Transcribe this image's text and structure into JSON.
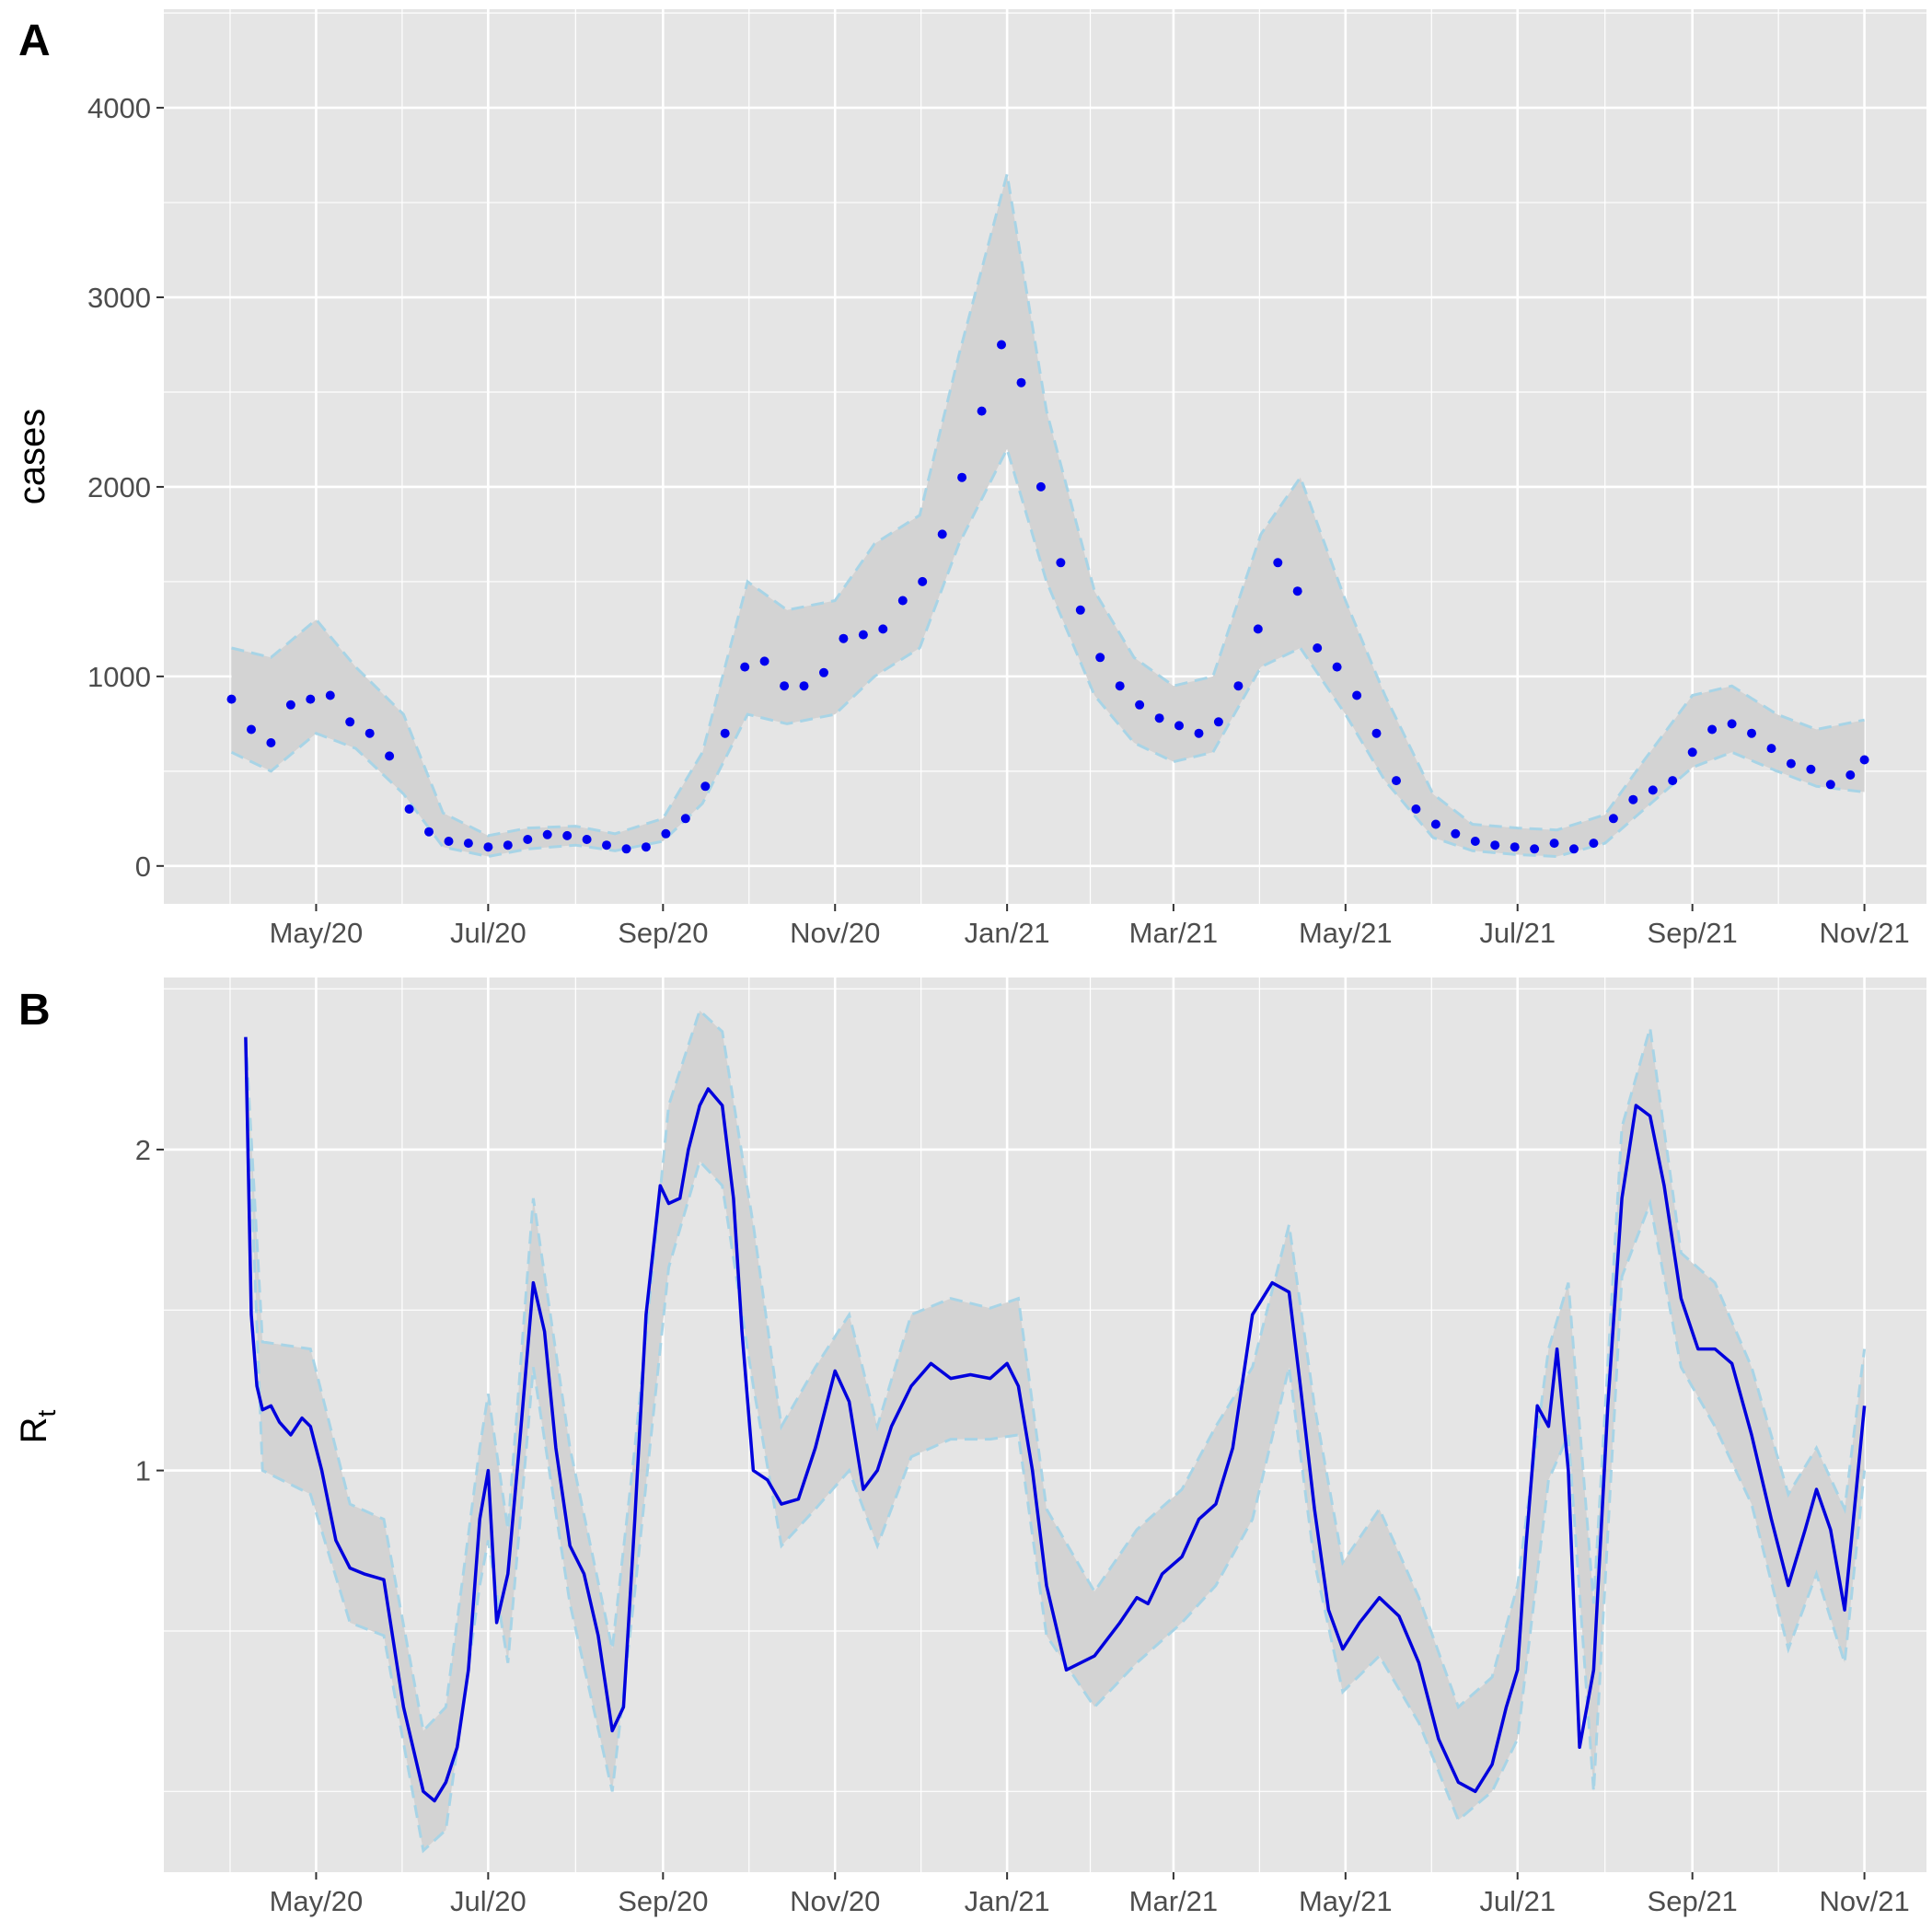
{
  "figure": {
    "panel_a_tag": "A",
    "panel_b_tag": "B"
  },
  "colors": {
    "panel_bg": "#e5e5e5",
    "grid": "#ffffff",
    "ribbon_fill": "#d3d3d3",
    "ribbon_edge": "#a8d4e6",
    "points": "#0000ee",
    "line": "#0000dd",
    "tick_text": "#4d4d4d"
  },
  "chart_data": [
    {
      "panel": "A",
      "type": "scatter",
      "ylabel": "cases",
      "ylim": [
        -200,
        4520
      ],
      "yticks": [
        0,
        1000,
        2000,
        3000,
        4000
      ],
      "ytick_labels": [
        "0",
        "1000",
        "2000",
        "3000",
        "4000"
      ],
      "xlim": [
        "2020-03-08",
        "2021-11-23"
      ],
      "xticks": [
        "2020-05-01",
        "2020-07-01",
        "2020-09-01",
        "2020-11-01",
        "2021-01-01",
        "2021-03-01",
        "2021-05-01",
        "2021-07-01",
        "2021-09-01",
        "2021-11-01"
      ],
      "xtick_labels": [
        "May/20",
        "Jul/20",
        "Sep/20",
        "Nov/20",
        "Jan/21",
        "Mar/21",
        "May/21",
        "Jul/21",
        "Sep/21",
        "Nov/21"
      ],
      "grid": true,
      "legend": "none",
      "band_note": "dashed light-blue interval band around observed daily cases",
      "series": [
        {
          "kind": "points",
          "x": [
            "2020-04-01",
            "2020-04-08",
            "2020-04-15",
            "2020-04-22",
            "2020-04-29",
            "2020-05-06",
            "2020-05-13",
            "2020-05-20",
            "2020-05-27",
            "2020-06-03",
            "2020-06-10",
            "2020-06-17",
            "2020-06-24",
            "2020-07-01",
            "2020-07-08",
            "2020-07-15",
            "2020-07-22",
            "2020-07-29",
            "2020-08-05",
            "2020-08-12",
            "2020-08-19",
            "2020-08-26",
            "2020-09-02",
            "2020-09-09",
            "2020-09-16",
            "2020-09-23",
            "2020-09-30",
            "2020-10-07",
            "2020-10-14",
            "2020-10-21",
            "2020-10-28",
            "2020-11-04",
            "2020-11-11",
            "2020-11-18",
            "2020-11-25",
            "2020-12-02",
            "2020-12-09",
            "2020-12-16",
            "2020-12-23",
            "2020-12-30",
            "2021-01-06",
            "2021-01-13",
            "2021-01-20",
            "2021-01-27",
            "2021-02-03",
            "2021-02-10",
            "2021-02-17",
            "2021-02-24",
            "2021-03-03",
            "2021-03-10",
            "2021-03-17",
            "2021-03-24",
            "2021-03-31",
            "2021-04-07",
            "2021-04-14",
            "2021-04-21",
            "2021-04-28",
            "2021-05-05",
            "2021-05-12",
            "2021-05-19",
            "2021-05-26",
            "2021-06-02",
            "2021-06-09",
            "2021-06-16",
            "2021-06-23",
            "2021-06-30",
            "2021-07-07",
            "2021-07-14",
            "2021-07-21",
            "2021-07-28",
            "2021-08-04",
            "2021-08-11",
            "2021-08-18",
            "2021-08-25",
            "2021-09-01",
            "2021-09-08",
            "2021-09-15",
            "2021-09-22",
            "2021-09-29",
            "2021-10-06",
            "2021-10-13",
            "2021-10-20",
            "2021-10-27",
            "2021-11-01"
          ],
          "y": [
            880,
            720,
            650,
            850,
            880,
            900,
            760,
            700,
            580,
            300,
            180,
            130,
            120,
            100,
            110,
            140,
            165,
            160,
            140,
            110,
            90,
            100,
            170,
            250,
            420,
            700,
            1050,
            1080,
            950,
            950,
            1020,
            1200,
            1220,
            1250,
            1400,
            1500,
            1750,
            2050,
            2400,
            2750,
            2550,
            2000,
            1600,
            1350,
            1100,
            950,
            850,
            780,
            740,
            700,
            760,
            950,
            1250,
            1600,
            1450,
            1150,
            1050,
            900,
            700,
            450,
            300,
            220,
            170,
            130,
            110,
            100,
            90,
            120,
            90,
            120,
            250,
            350,
            400,
            450,
            600,
            720,
            750,
            700,
            620,
            540,
            510,
            430,
            480,
            560
          ]
        },
        {
          "kind": "band_upper",
          "x": [
            "2020-04-01",
            "2020-04-15",
            "2020-05-01",
            "2020-05-15",
            "2020-06-01",
            "2020-06-15",
            "2020-07-01",
            "2020-07-15",
            "2020-08-01",
            "2020-08-15",
            "2020-09-01",
            "2020-09-15",
            "2020-10-01",
            "2020-10-15",
            "2020-11-01",
            "2020-11-15",
            "2020-12-01",
            "2020-12-15",
            "2021-01-01",
            "2021-01-15",
            "2021-02-01",
            "2021-02-15",
            "2021-03-01",
            "2021-03-15",
            "2021-04-01",
            "2021-04-15",
            "2021-05-01",
            "2021-05-15",
            "2021-06-01",
            "2021-06-15",
            "2021-07-01",
            "2021-07-15",
            "2021-08-01",
            "2021-08-15",
            "2021-09-01",
            "2021-09-15",
            "2021-10-01",
            "2021-10-15",
            "2021-11-01"
          ],
          "y": [
            1150,
            1100,
            1300,
            1050,
            800,
            280,
            160,
            200,
            210,
            170,
            250,
            600,
            1500,
            1350,
            1400,
            1700,
            1850,
            2700,
            3650,
            2400,
            1450,
            1100,
            950,
            1000,
            1750,
            2050,
            1400,
            900,
            380,
            220,
            200,
            190,
            270,
            560,
            900,
            950,
            800,
            720,
            770
          ]
        },
        {
          "kind": "band_lower",
          "x": [
            "2020-04-01",
            "2020-04-15",
            "2020-05-01",
            "2020-05-15",
            "2020-06-01",
            "2020-06-15",
            "2020-07-01",
            "2020-07-15",
            "2020-08-01",
            "2020-08-15",
            "2020-09-01",
            "2020-09-15",
            "2020-10-01",
            "2020-10-15",
            "2020-11-01",
            "2020-11-15",
            "2020-12-01",
            "2020-12-15",
            "2021-01-01",
            "2021-01-15",
            "2021-02-01",
            "2021-02-15",
            "2021-03-01",
            "2021-03-15",
            "2021-04-01",
            "2021-04-15",
            "2021-05-01",
            "2021-05-15",
            "2021-06-01",
            "2021-06-15",
            "2021-07-01",
            "2021-07-15",
            "2021-08-01",
            "2021-08-15",
            "2021-09-01",
            "2021-09-15",
            "2021-10-01",
            "2021-10-15",
            "2021-11-01"
          ],
          "y": [
            600,
            500,
            700,
            620,
            380,
            100,
            50,
            90,
            110,
            80,
            130,
            330,
            800,
            750,
            800,
            1000,
            1150,
            1700,
            2200,
            1500,
            900,
            650,
            550,
            600,
            1050,
            1150,
            800,
            450,
            150,
            80,
            60,
            50,
            120,
            300,
            520,
            600,
            500,
            420,
            390
          ]
        }
      ]
    },
    {
      "panel": "B",
      "type": "line",
      "ylabel": "R",
      "ylabel_subscript": "t",
      "scale": "log",
      "ylim": [
        0.42,
        2.9
      ],
      "yticks": [
        1,
        2
      ],
      "ytick_labels": [
        "1",
        "2"
      ],
      "xlim": [
        "2020-03-08",
        "2021-11-23"
      ],
      "xticks": [
        "2020-05-01",
        "2020-07-01",
        "2020-09-01",
        "2020-11-01",
        "2021-01-01",
        "2021-03-01",
        "2021-05-01",
        "2021-07-01",
        "2021-09-01",
        "2021-11-01"
      ],
      "xtick_labels": [
        "May/20",
        "Jul/20",
        "Sep/20",
        "Nov/20",
        "Jan/21",
        "Mar/21",
        "May/21",
        "Jul/21",
        "Sep/21",
        "Nov/21"
      ],
      "grid": true,
      "legend": "none",
      "series": [
        {
          "kind": "line",
          "x": [
            "2020-04-06",
            "2020-04-08",
            "2020-04-10",
            "2020-04-12",
            "2020-04-15",
            "2020-04-18",
            "2020-04-22",
            "2020-04-26",
            "2020-04-29",
            "2020-05-03",
            "2020-05-08",
            "2020-05-13",
            "2020-05-18",
            "2020-05-25",
            "2020-06-01",
            "2020-06-08",
            "2020-06-12",
            "2020-06-16",
            "2020-06-20",
            "2020-06-24",
            "2020-06-28",
            "2020-07-01",
            "2020-07-04",
            "2020-07-08",
            "2020-07-12",
            "2020-07-17",
            "2020-07-21",
            "2020-07-25",
            "2020-07-30",
            "2020-08-04",
            "2020-08-09",
            "2020-08-14",
            "2020-08-18",
            "2020-08-22",
            "2020-08-26",
            "2020-08-31",
            "2020-09-03",
            "2020-09-07",
            "2020-09-10",
            "2020-09-14",
            "2020-09-17",
            "2020-09-22",
            "2020-09-26",
            "2020-09-29",
            "2020-10-03",
            "2020-10-08",
            "2020-10-13",
            "2020-10-19",
            "2020-10-25",
            "2020-11-01",
            "2020-11-06",
            "2020-11-11",
            "2020-11-16",
            "2020-11-21",
            "2020-11-28",
            "2020-12-05",
            "2020-12-12",
            "2020-12-19",
            "2020-12-26",
            "2021-01-01",
            "2021-01-05",
            "2021-01-10",
            "2021-01-15",
            "2021-01-22",
            "2021-02-01",
            "2021-02-10",
            "2021-02-16",
            "2021-02-20",
            "2021-02-25",
            "2021-03-04",
            "2021-03-10",
            "2021-03-16",
            "2021-03-22",
            "2021-03-29",
            "2021-04-05",
            "2021-04-11",
            "2021-04-15",
            "2021-04-20",
            "2021-04-25",
            "2021-04-30",
            "2021-05-06",
            "2021-05-13",
            "2021-05-20",
            "2021-05-27",
            "2021-06-03",
            "2021-06-10",
            "2021-06-16",
            "2021-06-22",
            "2021-06-27",
            "2021-07-01",
            "2021-07-04",
            "2021-07-08",
            "2021-07-12",
            "2021-07-15",
            "2021-07-19",
            "2021-07-23",
            "2021-07-28",
            "2021-08-02",
            "2021-08-07",
            "2021-08-12",
            "2021-08-17",
            "2021-08-22",
            "2021-08-28",
            "2021-09-03",
            "2021-09-09",
            "2021-09-15",
            "2021-09-22",
            "2021-09-29",
            "2021-10-05",
            "2021-10-11",
            "2021-10-15",
            "2021-10-20",
            "2021-10-25",
            "2021-11-01"
          ],
          "y": [
            2.55,
            1.4,
            1.2,
            1.14,
            1.15,
            1.11,
            1.08,
            1.12,
            1.1,
            1.0,
            0.86,
            0.81,
            0.8,
            0.79,
            0.6,
            0.5,
            0.49,
            0.51,
            0.55,
            0.65,
            0.9,
            1.0,
            0.72,
            0.8,
            1.05,
            1.5,
            1.35,
            1.05,
            0.85,
            0.8,
            0.7,
            0.57,
            0.6,
            0.9,
            1.4,
            1.85,
            1.78,
            1.8,
            2.0,
            2.2,
            2.28,
            2.2,
            1.8,
            1.35,
            1.0,
            0.98,
            0.93,
            0.94,
            1.05,
            1.24,
            1.16,
            0.96,
            1.0,
            1.1,
            1.2,
            1.26,
            1.22,
            1.23,
            1.22,
            1.26,
            1.2,
            1.0,
            0.78,
            0.65,
            0.67,
            0.72,
            0.76,
            0.75,
            0.8,
            0.83,
            0.9,
            0.93,
            1.05,
            1.4,
            1.5,
            1.47,
            1.2,
            0.92,
            0.74,
            0.68,
            0.72,
            0.76,
            0.73,
            0.66,
            0.56,
            0.51,
            0.5,
            0.53,
            0.6,
            0.65,
            0.85,
            1.15,
            1.1,
            1.3,
            1.0,
            0.55,
            0.65,
            1.15,
            1.8,
            2.2,
            2.15,
            1.85,
            1.45,
            1.3,
            1.3,
            1.26,
            1.08,
            0.9,
            0.78,
            0.88,
            0.96,
            0.88,
            0.74,
            1.15
          ]
        }
      ],
      "band_upper": {
        "x": [
          "2020-04-06",
          "2020-04-12",
          "2020-04-29",
          "2020-05-13",
          "2020-05-25",
          "2020-06-08",
          "2020-06-16",
          "2020-06-28",
          "2020-07-01",
          "2020-07-08",
          "2020-07-17",
          "2020-07-30",
          "2020-08-14",
          "2020-08-22",
          "2020-09-03",
          "2020-09-14",
          "2020-09-22",
          "2020-10-03",
          "2020-10-13",
          "2020-10-25",
          "2020-11-06",
          "2020-11-16",
          "2020-11-28",
          "2020-12-12",
          "2020-12-26",
          "2021-01-05",
          "2021-01-15",
          "2021-02-01",
          "2021-02-16",
          "2021-03-04",
          "2021-03-16",
          "2021-03-29",
          "2021-04-11",
          "2021-04-20",
          "2021-04-30",
          "2021-05-13",
          "2021-05-27",
          "2021-06-10",
          "2021-06-22",
          "2021-07-01",
          "2021-07-12",
          "2021-07-19",
          "2021-07-28",
          "2021-08-07",
          "2021-08-17",
          "2021-08-28",
          "2021-09-09",
          "2021-09-22",
          "2021-10-05",
          "2021-10-15",
          "2021-10-25",
          "2021-11-01"
        ],
        "y": [
          2.55,
          1.32,
          1.3,
          0.93,
          0.9,
          0.57,
          0.6,
          1.05,
          1.18,
          0.88,
          1.8,
          1.05,
          0.68,
          1.05,
          2.2,
          2.7,
          2.58,
          1.7,
          1.1,
          1.25,
          1.4,
          1.1,
          1.4,
          1.45,
          1.42,
          1.45,
          0.92,
          0.77,
          0.88,
          0.96,
          1.1,
          1.25,
          1.7,
          1.15,
          0.82,
          0.92,
          0.76,
          0.6,
          0.64,
          0.78,
          1.3,
          1.5,
          0.75,
          2.1,
          2.6,
          1.6,
          1.5,
          1.25,
          0.95,
          1.05,
          0.92,
          1.3
        ]
      },
      "band_lower": {
        "x": [
          "2020-04-06",
          "2020-04-12",
          "2020-04-29",
          "2020-05-13",
          "2020-05-25",
          "2020-06-08",
          "2020-06-16",
          "2020-06-28",
          "2020-07-01",
          "2020-07-08",
          "2020-07-17",
          "2020-07-30",
          "2020-08-14",
          "2020-08-22",
          "2020-09-03",
          "2020-09-14",
          "2020-09-22",
          "2020-10-03",
          "2020-10-13",
          "2020-10-25",
          "2020-11-06",
          "2020-11-16",
          "2020-11-28",
          "2020-12-12",
          "2020-12-26",
          "2021-01-05",
          "2021-01-15",
          "2021-02-01",
          "2021-02-16",
          "2021-03-04",
          "2021-03-16",
          "2021-03-29",
          "2021-04-11",
          "2021-04-20",
          "2021-04-30",
          "2021-05-13",
          "2021-05-27",
          "2021-06-10",
          "2021-06-22",
          "2021-07-01",
          "2021-07-12",
          "2021-07-19",
          "2021-07-28",
          "2021-08-07",
          "2021-08-17",
          "2021-08-28",
          "2021-09-09",
          "2021-09-22",
          "2021-10-05",
          "2021-10-15",
          "2021-10-25",
          "2021-11-01"
        ],
        "y": [
          2.55,
          1.0,
          0.95,
          0.72,
          0.7,
          0.44,
          0.46,
          0.78,
          0.86,
          0.66,
          1.25,
          0.75,
          0.5,
          0.77,
          1.55,
          1.95,
          1.85,
          1.2,
          0.85,
          0.92,
          1.0,
          0.85,
          1.03,
          1.07,
          1.07,
          1.08,
          0.7,
          0.6,
          0.66,
          0.72,
          0.78,
          0.9,
          1.25,
          0.82,
          0.62,
          0.67,
          0.58,
          0.47,
          0.5,
          0.56,
          0.98,
          1.08,
          0.5,
          1.52,
          1.78,
          1.25,
          1.1,
          0.93,
          0.68,
          0.8,
          0.66,
          1.0
        ]
      }
    }
  ]
}
